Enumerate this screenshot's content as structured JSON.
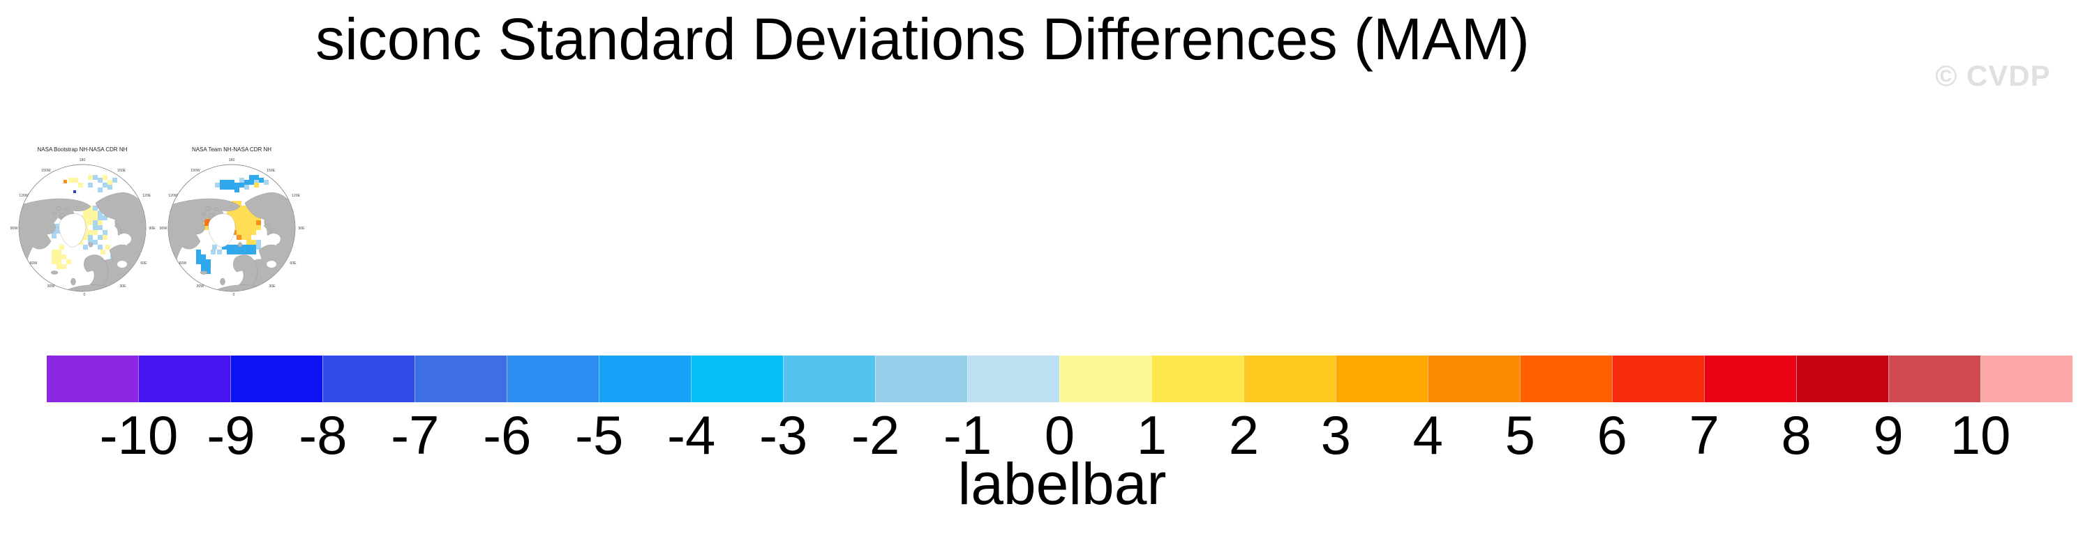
{
  "title": "siconc Standard Deviations Differences (MAM)",
  "watermark": "© CVDP",
  "maps": [
    {
      "title": "NASA Bootstrap NH-NASA CDR NH",
      "lon_labels": [
        "180",
        "150W",
        "150E",
        "120W",
        "120E",
        "90W",
        "90E",
        "60W",
        "60E",
        "30W",
        "30E",
        "0"
      ],
      "cells": {
        "paleyellow": [
          [
            72,
            52
          ],
          [
            79,
            52
          ],
          [
            100,
            48
          ],
          [
            121,
            48
          ],
          [
            128,
            55
          ],
          [
            86,
            59
          ],
          [
            93,
            92
          ],
          [
            100,
            92
          ],
          [
            93,
            99
          ],
          [
            100,
            99
          ],
          [
            107,
            99
          ],
          [
            86,
            106
          ],
          [
            93,
            106
          ],
          [
            100,
            106
          ],
          [
            107,
            106
          ],
          [
            93,
            113
          ],
          [
            100,
            113
          ],
          [
            114,
            113
          ],
          [
            86,
            120
          ],
          [
            93,
            120
          ],
          [
            93,
            127
          ],
          [
            100,
            127
          ],
          [
            107,
            127
          ],
          [
            86,
            134
          ],
          [
            93,
            134
          ],
          [
            79,
            141
          ],
          [
            86,
            141
          ],
          [
            121,
            134
          ],
          [
            48,
            155
          ],
          [
            55,
            155
          ],
          [
            48,
            162
          ],
          [
            55,
            162
          ],
          [
            62,
            162
          ],
          [
            48,
            169
          ],
          [
            55,
            169
          ],
          [
            62,
            176
          ],
          [
            55,
            176
          ],
          [
            69,
            169
          ],
          [
            125,
            148
          ],
          [
            118,
            155
          ],
          [
            120,
            190
          ],
          [
            127,
            183
          ],
          [
            59,
            148
          ]
        ],
        "lightblue": [
          [
            107,
            48
          ],
          [
            114,
            52
          ],
          [
            135,
            52
          ],
          [
            121,
            59
          ],
          [
            128,
            62
          ],
          [
            100,
            59
          ],
          [
            114,
            66
          ],
          [
            107,
            92
          ],
          [
            114,
            99
          ],
          [
            79,
            106
          ],
          [
            114,
            106
          ],
          [
            121,
            106
          ],
          [
            86,
            113
          ],
          [
            107,
            113
          ],
          [
            79,
            120
          ],
          [
            107,
            120
          ],
          [
            114,
            120
          ],
          [
            121,
            127
          ],
          [
            79,
            127
          ],
          [
            100,
            134
          ],
          [
            114,
            134
          ],
          [
            107,
            141
          ],
          [
            100,
            141
          ],
          [
            93,
            148
          ],
          [
            114,
            148
          ],
          [
            48,
            118
          ],
          [
            55,
            118
          ],
          [
            41,
            125
          ],
          [
            48,
            125
          ],
          [
            55,
            125
          ],
          [
            48,
            132
          ],
          [
            132,
            162
          ]
        ],
        "orange": [
          [
            65,
            55,
            5
          ]
        ],
        "navy": [
          [
            79,
            70,
            4
          ],
          [
            120,
            176,
            4
          ]
        ]
      }
    },
    {
      "title": "NASA Team NH-NASA CDR NH",
      "lon_labels": [
        "180",
        "150W",
        "150E",
        "120W",
        "120E",
        "90W",
        "90E",
        "60W",
        "60E",
        "30W",
        "30E",
        "0"
      ],
      "cells": {
        "blue": [
          [
            75,
            55
          ],
          [
            82,
            55
          ],
          [
            89,
            55
          ],
          [
            96,
            59
          ],
          [
            103,
            59
          ],
          [
            75,
            62
          ],
          [
            82,
            62
          ],
          [
            110,
            55
          ],
          [
            117,
            48
          ],
          [
            124,
            48
          ],
          [
            117,
            55
          ],
          [
            131,
            52
          ],
          [
            96,
            66
          ],
          [
            89,
            62
          ],
          [
            78,
            148
          ],
          [
            85,
            148
          ],
          [
            92,
            148
          ],
          [
            99,
            148
          ],
          [
            106,
            148
          ],
          [
            113,
            148
          ],
          [
            120,
            148
          ],
          [
            85,
            155
          ],
          [
            92,
            155
          ],
          [
            99,
            155
          ],
          [
            113,
            155
          ],
          [
            71,
            141
          ],
          [
            78,
            141
          ],
          [
            120,
            155
          ],
          [
            106,
            155
          ],
          [
            41,
            162
          ],
          [
            48,
            162
          ],
          [
            41,
            169
          ],
          [
            48,
            169
          ],
          [
            55,
            169
          ],
          [
            48,
            176
          ],
          [
            55,
            176
          ],
          [
            41,
            155
          ],
          [
            55,
            183
          ],
          [
            48,
            183
          ]
        ],
        "lightblue": [
          [
            68,
            59
          ],
          [
            103,
            52
          ],
          [
            110,
            62
          ],
          [
            124,
            55
          ],
          [
            138,
            55
          ],
          [
            64,
            148
          ],
          [
            127,
            148
          ],
          [
            71,
            155
          ],
          [
            127,
            141
          ],
          [
            62,
            155
          ]
        ],
        "gold": [
          [
            92,
            85
          ],
          [
            99,
            85
          ],
          [
            85,
            92
          ],
          [
            92,
            92
          ],
          [
            99,
            92
          ],
          [
            106,
            92
          ],
          [
            113,
            92
          ],
          [
            85,
            99
          ],
          [
            92,
            99
          ],
          [
            99,
            99
          ],
          [
            106,
            99
          ],
          [
            113,
            99
          ],
          [
            120,
            99
          ],
          [
            85,
            106
          ],
          [
            92,
            106
          ],
          [
            99,
            106
          ],
          [
            106,
            106
          ],
          [
            113,
            106
          ],
          [
            120,
            106
          ],
          [
            127,
            106
          ],
          [
            92,
            113
          ],
          [
            99,
            113
          ],
          [
            106,
            113
          ],
          [
            113,
            113
          ],
          [
            120,
            113
          ],
          [
            92,
            120
          ],
          [
            99,
            120
          ],
          [
            106,
            120
          ],
          [
            113,
            120
          ],
          [
            120,
            120
          ],
          [
            127,
            120
          ],
          [
            99,
            127
          ],
          [
            106,
            127
          ],
          [
            113,
            127
          ],
          [
            120,
            127
          ],
          [
            106,
            134
          ],
          [
            113,
            134
          ],
          [
            120,
            141
          ],
          [
            48,
            113
          ],
          [
            55,
            106
          ],
          [
            62,
            113
          ],
          [
            55,
            120
          ],
          [
            48,
            120
          ],
          [
            62,
            120
          ],
          [
            85,
            113
          ],
          [
            127,
            99
          ],
          [
            113,
            141
          ],
          [
            125,
            190
          ],
          [
            132,
            183
          ],
          [
            138,
            162
          ],
          [
            124,
            59
          ]
        ],
        "orange": [
          [
            85,
            120
          ],
          [
            92,
            127
          ],
          [
            127,
            113
          ],
          [
            120,
            92
          ],
          [
            99,
            134
          ]
        ],
        "deeporange": [
          [
            53,
            111,
            10
          ]
        ]
      }
    }
  ],
  "cell_palette": {
    "paleyellow": "#FFF6A0",
    "gold": "#FFDE55",
    "lightblue": "#A9D5F0",
    "blue": "#2FA9EC",
    "orange": "#F89020",
    "deeporange": "#F9731A",
    "navy": "#2B3FD6"
  },
  "labelbar": {
    "caption": "labelbar",
    "tick_labels": [
      "-10",
      "-9",
      "-8",
      "-7",
      "-6",
      "-5",
      "-4",
      "-3",
      "-2",
      "-1",
      "0",
      "1",
      "2",
      "3",
      "4",
      "5",
      "6",
      "7",
      "8",
      "9",
      "10"
    ],
    "colors": [
      "#8B26E3",
      "#4713EE",
      "#0D12F2",
      "#2F4CE6",
      "#3D6EE3",
      "#2D8CF2",
      "#16A3F7",
      "#06BDF6",
      "#54C3F0",
      "#96CFE9",
      "#BCE0F2",
      "#FDF998",
      "#FFE74E",
      "#FFCA20",
      "#FFA800",
      "#FB8B00",
      "#FE6000",
      "#F92B0D",
      "#EA0215",
      "#C50312",
      "#CE4A4F",
      "#FBA7A7"
    ]
  },
  "chart_data": {
    "type": "heatmap",
    "subtype": "polar_stereographic_difference_maps",
    "title": "siconc Standard Deviations Differences (MAM)",
    "variable": "siconc",
    "statistic": "Standard Deviations Differences",
    "season": "MAM",
    "panels": [
      "NASA Bootstrap NH-NASA CDR NH",
      "NASA Team NH-NASA CDR NH"
    ],
    "map_longitude_labels": [
      "180",
      "150W",
      "150E",
      "120W",
      "120E",
      "90W",
      "90E",
      "60W",
      "60E",
      "30W",
      "30E",
      "0"
    ],
    "land_color": "#B5B5B5",
    "ocean_color": "#FFFFFF",
    "colorbar": {
      "label": "labelbar",
      "orientation": "horizontal",
      "position": "bottom",
      "levels": [
        -10,
        -9,
        -8,
        -7,
        -6,
        -5,
        -4,
        -3,
        -2,
        -1,
        0,
        1,
        2,
        3,
        4,
        5,
        6,
        7,
        8,
        9,
        10
      ],
      "colors": [
        "#8B26E3",
        "#4713EE",
        "#0D12F2",
        "#2F4CE6",
        "#3D6EE3",
        "#2D8CF2",
        "#16A3F7",
        "#06BDF6",
        "#54C3F0",
        "#96CFE9",
        "#BCE0F2",
        "#FDF998",
        "#FFE74E",
        "#FFCA20",
        "#FFA800",
        "#FB8B00",
        "#FE6000",
        "#F92B0D",
        "#EA0215",
        "#C50312",
        "#CE4A4F",
        "#FBA7A7"
      ]
    }
  }
}
